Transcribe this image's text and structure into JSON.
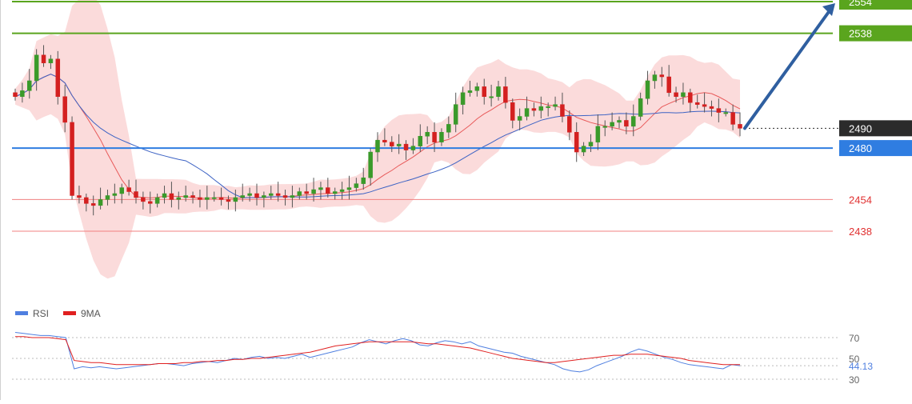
{
  "chart_data": [
    {
      "type": "candlestick",
      "ylim": [
        2420,
        2555
      ],
      "level_lines": [
        {
          "value": 2554,
          "label": "2554",
          "color": "#5aa51e",
          "style": "solid",
          "label_style": "filled"
        },
        {
          "value": 2538,
          "label": "2538",
          "color": "#5aa51e",
          "style": "solid",
          "label_style": "filled"
        },
        {
          "value": 2490,
          "label": "2490",
          "color": "#2b2b2b",
          "style": "dotted",
          "label_style": "filled"
        },
        {
          "value": 2480,
          "label": "2480",
          "color": "#2f7de1",
          "style": "solid",
          "label_style": "filled"
        },
        {
          "value": 2454,
          "label": "2454",
          "color": "#f08080",
          "style": "solid",
          "label_style": "text"
        },
        {
          "value": 2438,
          "label": "2438",
          "color": "#f08080",
          "style": "solid",
          "label_style": "text"
        }
      ],
      "projection_arrow": {
        "from_value": 2490,
        "to_value": 2554,
        "color": "#2f5fa0"
      },
      "close_series": [
        2506,
        2509,
        2514,
        2527,
        2523,
        2525,
        2506,
        2493,
        2456,
        2455,
        2452,
        2451,
        2454,
        2456,
        2457,
        2460,
        2458,
        2455,
        2453,
        2452,
        2455,
        2457,
        2454,
        2455,
        2456,
        2455,
        2454,
        2455,
        2455,
        2454,
        2453,
        2455,
        2456,
        2457,
        2455,
        2456,
        2457,
        2456,
        2455,
        2456,
        2458,
        2457,
        2459,
        2460,
        2457,
        2458,
        2459,
        2460,
        2462,
        2465,
        2478,
        2484,
        2483,
        2481,
        2482,
        2479,
        2481,
        2486,
        2488,
        2483,
        2488,
        2492,
        2502,
        2508,
        2509,
        2511,
        2506,
        2506,
        2511,
        2503,
        2494,
        2496,
        2500,
        2499,
        2501,
        2501,
        2502,
        2496,
        2488,
        2478,
        2481,
        2483,
        2491,
        2491,
        2493,
        2494,
        2491,
        2496,
        2505,
        2514,
        2517,
        2516,
        2508,
        2506,
        2508,
        2503,
        2502,
        2501,
        2500,
        2498,
        2498,
        2492,
        2490
      ],
      "candle_colors": {
        "up": "#3a9a2a",
        "down": "#d42020"
      },
      "envelope_color": "#f7b7b7",
      "moving_averages": [
        {
          "color": "#e85a5a"
        },
        {
          "color": "#3d63c4"
        }
      ]
    },
    {
      "type": "line",
      "series": [
        {
          "name": "RSI",
          "color": "#4f7fe0"
        },
        {
          "name": "9MA",
          "color": "#e02020"
        }
      ],
      "y_ticks": [
        70,
        50,
        30
      ],
      "ylim": [
        25,
        85
      ],
      "last_value_label": "44.13",
      "rsi_values": [
        75,
        74,
        73,
        72,
        72,
        71,
        70,
        40,
        42,
        41,
        42,
        41,
        40,
        41,
        42,
        43,
        44,
        45,
        45,
        44,
        43,
        45,
        46,
        47,
        46,
        48,
        50,
        49,
        51,
        52,
        50,
        51,
        50,
        52,
        54,
        51,
        53,
        55,
        57,
        59,
        61,
        65,
        68,
        66,
        64,
        67,
        69,
        67,
        63,
        62,
        65,
        67,
        66,
        64,
        66,
        62,
        60,
        58,
        56,
        55,
        52,
        50,
        48,
        46,
        44,
        40,
        38,
        37,
        39,
        43,
        46,
        49,
        52,
        56,
        59,
        57,
        54,
        51,
        49,
        46,
        44,
        43,
        42,
        41,
        40,
        44,
        43
      ],
      "ma_values": [
        71,
        71,
        70,
        70,
        70,
        69,
        68,
        48,
        47,
        46,
        46,
        45,
        44,
        44,
        44,
        44,
        44,
        45,
        45,
        45,
        46,
        46,
        47,
        47,
        48,
        48,
        49,
        49,
        50,
        50,
        51,
        52,
        53,
        54,
        55,
        56,
        58,
        60,
        62,
        63,
        64,
        65,
        66,
        66,
        66,
        66,
        66,
        66,
        65,
        64,
        64,
        63,
        62,
        61,
        60,
        58,
        56,
        54,
        52,
        50,
        49,
        48,
        47,
        46,
        46,
        47,
        48,
        49,
        50,
        51,
        52,
        53,
        53,
        54,
        54,
        54,
        53,
        52,
        51,
        50,
        48,
        47,
        46,
        45,
        44,
        44,
        44
      ]
    }
  ]
}
